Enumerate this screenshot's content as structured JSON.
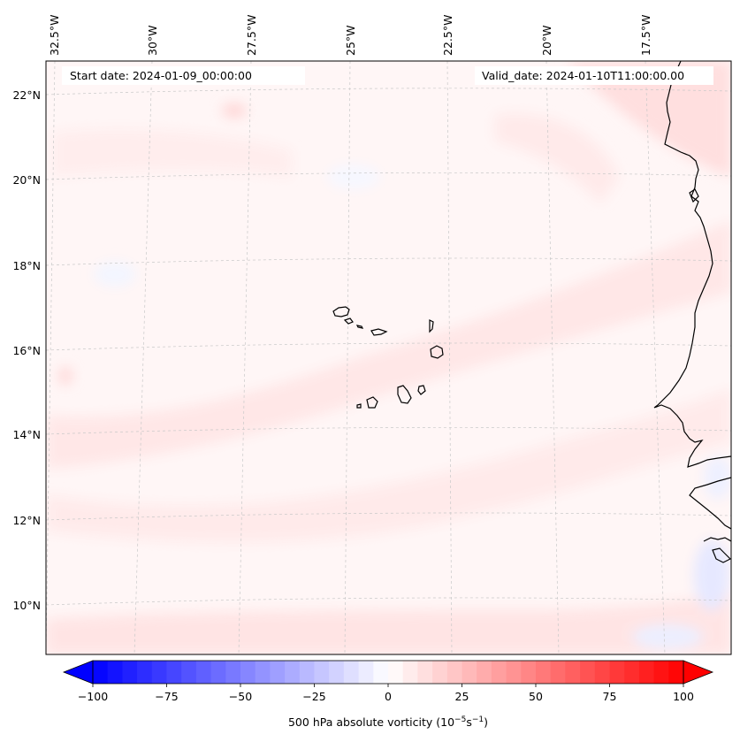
{
  "map": {
    "start_label": "Start date: 2024-01-09_00:00:00",
    "valid_label": "Valid_date: 2024-01-10T11:00:00.00",
    "longitude_labels": [
      "32.5°W",
      "30°W",
      "27.5°W",
      "25°W",
      "22.5°W",
      "20°W",
      "17.5°W"
    ],
    "latitude_labels": [
      "22°N",
      "20°N",
      "18°N",
      "16°N",
      "14°N",
      "12°N",
      "10°N"
    ],
    "field": "500 hPa absolute vorticity",
    "colors": {
      "negative": "#0000ff",
      "zero": "#ffffff",
      "positive": "#ff0000",
      "coastline": "#000000",
      "gridline": "#bdbdbd"
    }
  },
  "colorbar": {
    "label": "500 hPa absolute vorticity (10",
    "label_exp1": "−5",
    "label_mid": "s",
    "label_exp2": "−1",
    "label_end": ")",
    "ticks": [
      "−100",
      "−75",
      "−50",
      "−25",
      "0",
      "25",
      "50",
      "75",
      "100"
    ],
    "min": -100,
    "max": 100,
    "levels": 41
  }
}
